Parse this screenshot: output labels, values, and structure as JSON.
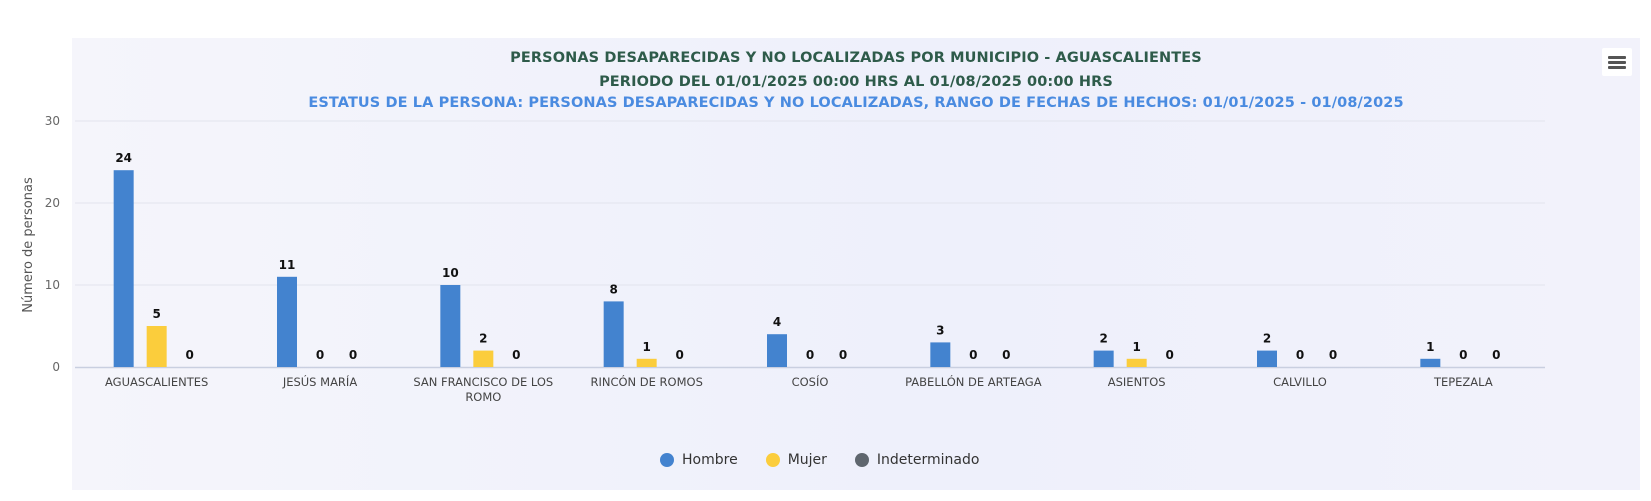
{
  "chart_data": {
    "type": "bar",
    "title": "PERSONAS DESAPARECIDAS Y NO LOCALIZADAS POR MUNICIPIO - AGUASCALIENTES",
    "subtitle": "PERIODO DEL 01/01/2025 00:00 HRS AL 01/08/2025 00:00 HRS",
    "status_line": "ESTATUS DE LA PERSONA: PERSONAS DESAPARECIDAS Y NO LOCALIZADAS, RANGO DE FECHAS DE HECHOS: 01/01/2025 - 01/08/2025",
    "xlabel": "",
    "ylabel": "Número de personas",
    "ylim": [
      0,
      30
    ],
    "yticks": [
      0,
      10,
      20,
      30
    ],
    "grid": true,
    "legend_position": "bottom-center",
    "categories": [
      [
        "AGUASCALIENTES"
      ],
      [
        "JESÚS MARÍA"
      ],
      [
        "SAN FRANCISCO DE LOS",
        "ROMO"
      ],
      [
        "RINCÓN DE ROMOS"
      ],
      [
        "COSÍO"
      ],
      [
        "PABELLÓN DE ARTEAGA"
      ],
      [
        "ASIENTOS"
      ],
      [
        "CALVILLO"
      ],
      [
        "TEPEZALA"
      ]
    ],
    "series": [
      {
        "name": "Hombre",
        "color": "#4383cf",
        "values": [
          24,
          11,
          10,
          8,
          4,
          3,
          2,
          2,
          1
        ]
      },
      {
        "name": "Mujer",
        "color": "#fbcd3c",
        "values": [
          5,
          0,
          2,
          1,
          0,
          0,
          1,
          0,
          0
        ]
      },
      {
        "name": "Indeterminado",
        "color": "#5f666e",
        "values": [
          0,
          0,
          0,
          0,
          0,
          0,
          0,
          0,
          0
        ]
      }
    ]
  }
}
